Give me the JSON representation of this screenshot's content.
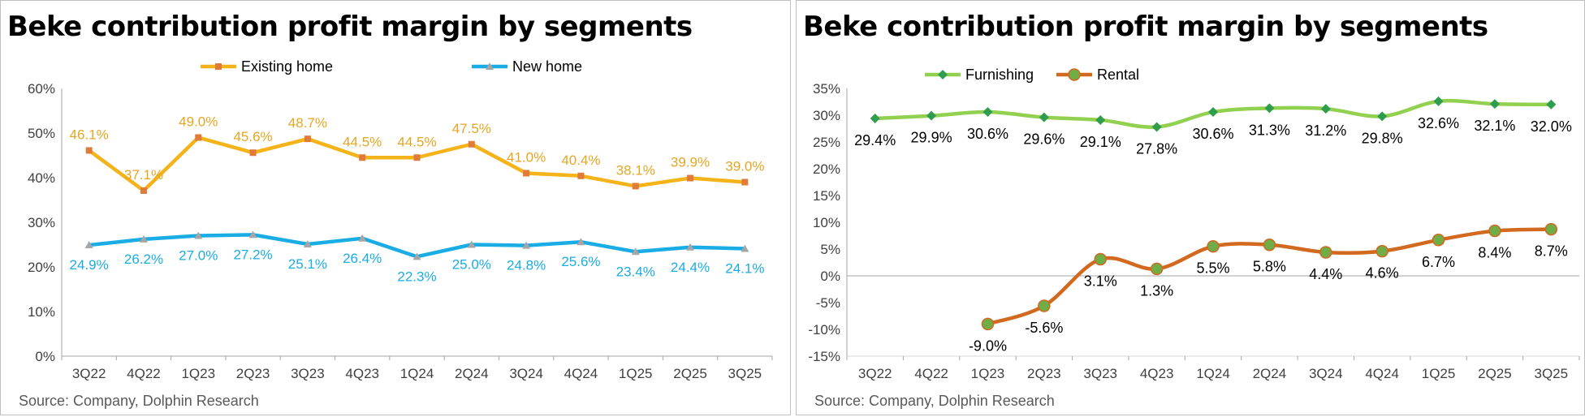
{
  "source_text": "Source: Company, Dolphin Research",
  "chart_data": [
    {
      "type": "line",
      "title": "Beke contribution profit margin by segments",
      "categories": [
        "3Q22",
        "4Q22",
        "1Q23",
        "2Q23",
        "3Q23",
        "4Q23",
        "1Q24",
        "2Q24",
        "3Q24",
        "4Q24",
        "1Q25",
        "2Q25",
        "3Q25"
      ],
      "yticks": [
        "60%",
        "50%",
        "40%",
        "30%",
        "20%",
        "10%",
        "0%"
      ],
      "ylim": [
        0,
        60
      ],
      "legend_position": "top",
      "series": [
        {
          "name": "Existing home",
          "color": "#F5B31A",
          "marker": "square",
          "label_color": "#E6A623",
          "values": [
            46.1,
            37.1,
            49.0,
            45.6,
            48.7,
            44.5,
            44.5,
            47.5,
            41.0,
            40.4,
            38.1,
            39.9,
            39.0
          ],
          "labels": [
            "46.1%",
            "37.1%",
            "49.0%",
            "45.6%",
            "48.7%",
            "44.5%",
            "44.5%",
            "47.5%",
            "41.0%",
            "40.4%",
            "38.1%",
            "39.9%",
            "39.0%"
          ],
          "label_side": "above"
        },
        {
          "name": "New home",
          "color": "#1AACE4",
          "marker": "triangle",
          "label_color": "#1AACE4",
          "values": [
            24.9,
            26.2,
            27.0,
            27.2,
            25.1,
            26.4,
            22.3,
            25.0,
            24.8,
            25.6,
            23.4,
            24.4,
            24.1
          ],
          "labels": [
            "24.9%",
            "26.2%",
            "27.0%",
            "27.2%",
            "25.1%",
            "26.4%",
            "22.3%",
            "25.0%",
            "24.8%",
            "25.6%",
            "23.4%",
            "24.4%",
            "24.1%"
          ],
          "label_side": "below"
        }
      ]
    },
    {
      "type": "line",
      "title": "Beke contribution profit margin by segments",
      "categories": [
        "3Q22",
        "4Q22",
        "1Q23",
        "2Q23",
        "3Q23",
        "4Q23",
        "1Q24",
        "2Q24",
        "3Q24",
        "4Q24",
        "1Q25",
        "2Q25",
        "3Q25"
      ],
      "yticks": [
        "35%",
        "30%",
        "25%",
        "20%",
        "15%",
        "10%",
        "5%",
        "0%",
        "-5%",
        "-10%",
        "-15%"
      ],
      "ylim": [
        -15,
        35
      ],
      "legend_position": "top",
      "series": [
        {
          "name": "Furnishing",
          "color": "#92D050",
          "marker": "diamond",
          "label_color": "#000000",
          "values": [
            29.4,
            29.9,
            30.6,
            29.6,
            29.1,
            27.8,
            30.6,
            31.3,
            31.2,
            29.8,
            32.6,
            32.1,
            32.0
          ],
          "labels": [
            "29.4%",
            "29.9%",
            "30.6%",
            "29.6%",
            "29.1%",
            "27.8%",
            "30.6%",
            "31.3%",
            "31.2%",
            "29.8%",
            "32.6%",
            "32.1%",
            "32.0%"
          ],
          "label_side": "below"
        },
        {
          "name": "Rental",
          "color": "#D2691E",
          "marker": "circle",
          "label_color": "#000000",
          "start_index": 2,
          "values": [
            null,
            null,
            -9.0,
            -5.6,
            3.1,
            1.3,
            5.5,
            5.8,
            4.4,
            4.6,
            6.7,
            8.4,
            8.7
          ],
          "labels": [
            "",
            "",
            "-9.0%",
            "-5.6%",
            "3.1%",
            "1.3%",
            "5.5%",
            "5.8%",
            "4.4%",
            "4.6%",
            "6.7%",
            "8.4%",
            "8.7%"
          ],
          "label_side": "below"
        }
      ]
    }
  ]
}
